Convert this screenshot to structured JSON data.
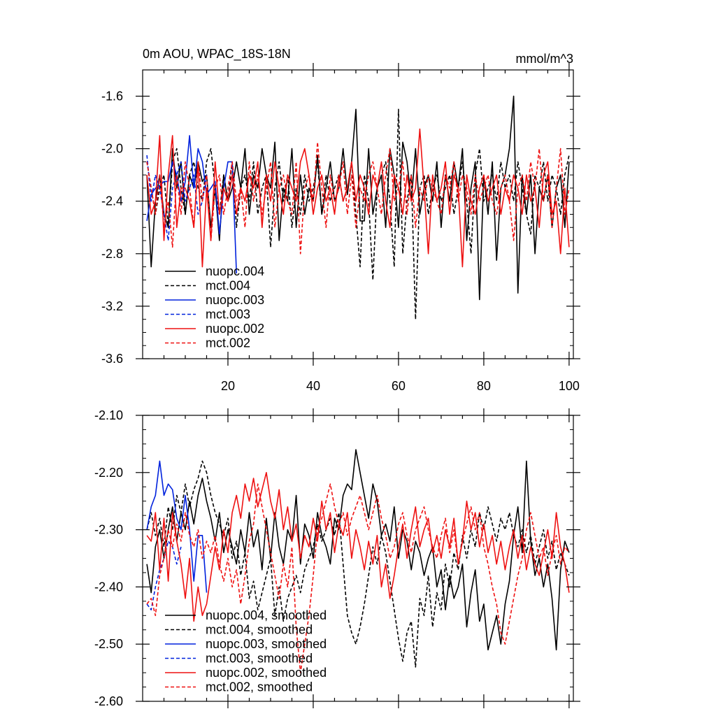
{
  "chart_data": [
    {
      "type": "line",
      "title": "0m AOU, WPAC_18S-18N",
      "units": "mmol/m^3",
      "xlabel": "",
      "ylabel": "",
      "xlim": [
        0,
        101
      ],
      "ylim": [
        -3.6,
        -1.4
      ],
      "yticks": [
        -1.6,
        -2.0,
        -2.4,
        -2.8,
        -3.2,
        -3.6
      ],
      "ytick_labels": [
        "-1.6",
        "-2.0",
        "-2.4",
        "-2.8",
        "-3.2",
        "-3.6"
      ],
      "xticks": [
        20,
        40,
        60,
        80,
        100
      ],
      "xtick_labels": [
        "20",
        "40",
        "60",
        "80",
        "100"
      ],
      "legend_position": "bottom-left",
      "series": [
        {
          "name": "nuopc.004",
          "color": "#000000",
          "dash": "solid",
          "x_start": 1,
          "values": [
            -2.2,
            -2.9,
            -2.4,
            -2.2,
            -2.5,
            -2.6,
            -2.0,
            -2.3,
            -2.1,
            -2.5,
            -2.2,
            -2.3,
            -2.1,
            -2.25,
            -2.2,
            -2.6,
            -2.3,
            -2.7,
            -2.2,
            -2.4,
            -2.3,
            -2.1,
            -2.3,
            -2.0,
            -2.5,
            -2.2,
            -2.3,
            -2.0,
            -2.2,
            -2.3,
            -1.95,
            -2.7,
            -2.3,
            -2.4,
            -2.0,
            -2.6,
            -2.2,
            -2.5,
            -2.3,
            -2.4,
            -2.05,
            -2.5,
            -2.3,
            -2.1,
            -2.4,
            -2.3,
            -2.0,
            -2.35,
            -2.1,
            -1.7,
            -2.55,
            -2.55,
            -2.0,
            -2.5,
            -2.3,
            -2.2,
            -2.6,
            -2.0,
            -2.2,
            -2.6,
            -1.95,
            -2.1,
            -2.4,
            -2.0,
            -2.5,
            -2.3,
            -2.2,
            -2.4,
            -2.1,
            -2.6,
            -2.2,
            -2.4,
            -2.1,
            -2.3,
            -2.0,
            -2.7,
            -2.3,
            -2.1,
            -3.15,
            -2.2,
            -2.5,
            -2.1,
            -2.85,
            -2.3,
            -2.2,
            -2.0,
            -1.6,
            -3.1,
            -2.2,
            -2.5,
            -2.2,
            -2.8,
            -2.3,
            -2.4,
            -2.2,
            -2.6,
            -2.3,
            -2.2,
            -2.6,
            -2.1
          ]
        },
        {
          "name": "mct.004",
          "color": "#000000",
          "dash": "dashed",
          "x_start": 1,
          "values": [
            -2.1,
            -2.3,
            -2.5,
            -2.3,
            -2.2,
            -2.6,
            -2.1,
            -2.0,
            -2.3,
            -2.5,
            -2.2,
            -2.1,
            -2.3,
            -2.4,
            -2.1,
            -2.0,
            -2.3,
            -2.5,
            -2.2,
            -2.4,
            -2.1,
            -2.6,
            -2.3,
            -2.2,
            -2.4,
            -2.1,
            -2.5,
            -2.3,
            -2.2,
            -2.75,
            -2.3,
            -2.1,
            -2.4,
            -2.2,
            -2.6,
            -2.3,
            -2.5,
            -2.2,
            -2.4,
            -2.3,
            -2.1,
            -2.5,
            -2.2,
            -2.4,
            -2.3,
            -2.2,
            -2.4,
            -2.3,
            -2.1,
            -2.5,
            -2.9,
            -2.2,
            -2.4,
            -3.0,
            -2.3,
            -2.2,
            -2.1,
            -2.4,
            -2.9,
            -1.7,
            -2.8,
            -2.4,
            -2.2,
            -3.3,
            -2.3,
            -2.2,
            -2.5,
            -2.3,
            -2.2,
            -2.4,
            -2.3,
            -2.2,
            -2.5,
            -2.3,
            -2.1,
            -2.4,
            -2.8,
            -2.2,
            -2.0,
            -2.4,
            -2.3,
            -2.2,
            -2.4,
            -2.1,
            -2.3,
            -2.2,
            -2.4,
            -2.1,
            -2.3,
            -2.5,
            -2.65,
            -2.2,
            -2.3,
            -2.1,
            -2.4,
            -2.2,
            -2.3,
            -2.5,
            -2.2,
            -2.05
          ]
        },
        {
          "name": "nuopc.003",
          "color": "#0022dd",
          "dash": "solid",
          "x_start": 1,
          "values": [
            -2.55,
            -2.35,
            -2.3,
            -2.28,
            -2.25,
            -2.25,
            -2.1,
            -2.2,
            -2.4,
            -2.25,
            -1.9,
            -2.3,
            -2.0,
            -2.1,
            -2.35,
            -2.3,
            -2.25,
            -2.65,
            -2.3,
            -2.1,
            -2.1,
            -2.95
          ]
        },
        {
          "name": "mct.003",
          "color": "#0022dd",
          "dash": "dashed",
          "x_start": 1,
          "values": [
            -2.05,
            -2.4,
            -2.2,
            -2.3,
            -2.5,
            -2.7,
            -2.3,
            -2.2,
            -2.1,
            -2.4,
            -2.3,
            -2.2,
            -2.5,
            -2.4,
            -2.2
          ]
        },
        {
          "name": "nuopc.002",
          "color": "#ee1111",
          "dash": "solid",
          "x_start": 1,
          "values": [
            -2.2,
            -2.5,
            -2.4,
            -1.9,
            -2.7,
            -2.2,
            -1.9,
            -2.6,
            -2.3,
            -2.3,
            -2.4,
            -2.6,
            -2.1,
            -2.9,
            -2.3,
            -2.7,
            -2.1,
            -2.5,
            -2.3,
            -2.4,
            -2.2,
            -2.5,
            -2.3,
            -2.4,
            -2.2,
            -2.3,
            -2.1,
            -2.6,
            -2.2,
            -2.4,
            -2.1,
            -2.3,
            -2.5,
            -2.2,
            -2.3,
            -2.4,
            -2.1,
            -2.0,
            -2.2,
            -2.5,
            -2.3,
            -2.2,
            -2.4,
            -2.3,
            -2.5,
            -2.2,
            -2.4,
            -2.3,
            -2.1,
            -2.4,
            -2.2,
            -2.3,
            -2.5,
            -2.2,
            -2.3,
            -2.1,
            -2.4,
            -2.6,
            -2.2,
            -2.3,
            -2.5,
            -2.2,
            -2.4,
            -2.3,
            -1.85,
            -2.3,
            -2.8,
            -2.2,
            -2.4,
            -2.3,
            -2.1,
            -2.5,
            -2.2,
            -2.3,
            -2.9,
            -2.2,
            -2.4,
            -2.5,
            -2.3,
            -2.2,
            -2.4,
            -2.3,
            -2.2,
            -2.5,
            -2.3,
            -2.4,
            -2.2,
            -2.3,
            -2.5,
            -2.2,
            -2.4,
            -2.3,
            -2.6,
            -2.2,
            -2.1,
            -2.5,
            -2.4,
            -2.8,
            -2.3,
            -2.75
          ]
        },
        {
          "name": "mct.002",
          "color": "#ee1111",
          "dash": "dashed",
          "x_start": 1,
          "values": [
            -2.1,
            -2.3,
            -2.5,
            -2.2,
            -2.6,
            -2.4,
            -2.75,
            -2.2,
            -2.5,
            -2.1,
            -2.3,
            -2.6,
            -2.1,
            -2.4,
            -2.2,
            -2.7,
            -2.3,
            -2.2,
            -2.5,
            -2.3,
            -2.1,
            -2.4,
            -2.3,
            -2.6,
            -2.1,
            -2.4,
            -2.2,
            -2.5,
            -2.3,
            -2.1,
            -2.6,
            -2.3,
            -2.2,
            -2.4,
            -2.5,
            -2.1,
            -2.8,
            -2.3,
            -2.2,
            -2.4,
            -1.95,
            -2.3,
            -2.6,
            -2.2,
            -2.4,
            -2.3,
            -2.1,
            -2.5,
            -2.2,
            -2.6,
            -2.3,
            -2.4,
            -2.2,
            -2.1,
            -2.3,
            -2.5,
            -2.2,
            -2.0,
            -2.4,
            -2.3,
            -2.1,
            -2.5,
            -2.2,
            -2.6,
            -2.3,
            -2.4,
            -2.2,
            -2.3,
            -2.4,
            -2.5,
            -2.2,
            -2.3,
            -2.1,
            -2.4,
            -2.2,
            -2.3,
            -2.5,
            -2.2,
            -2.4,
            -2.3,
            -2.2,
            -2.4,
            -2.5,
            -2.3,
            -2.2,
            -2.4,
            -2.7,
            -2.3,
            -2.2,
            -2.4,
            -2.1,
            -2.3,
            -2.0,
            -2.4,
            -2.2,
            -2.6,
            -2.3,
            -2.0,
            -2.5,
            -2.3
          ]
        }
      ]
    },
    {
      "type": "line",
      "title": "",
      "xlabel": "",
      "ylabel": "",
      "xlim": [
        0,
        101
      ],
      "ylim": [
        -2.6,
        -2.1
      ],
      "yticks": [
        -2.1,
        -2.2,
        -2.3,
        -2.4,
        -2.5,
        -2.6
      ],
      "ytick_labels": [
        "-2.10",
        "-2.20",
        "-2.30",
        "-2.40",
        "-2.50",
        "-2.60"
      ],
      "xticks": [
        20,
        40,
        60,
        80,
        100
      ],
      "legend_position": "bottom-left",
      "series": [
        {
          "name": "nuopc.004, smoothed",
          "color": "#000000",
          "dash": "solid",
          "x_start": 1,
          "values": [
            -2.36,
            -2.41,
            -2.33,
            -2.3,
            -2.35,
            -2.3,
            -2.26,
            -2.32,
            -2.27,
            -2.3,
            -2.25,
            -2.29,
            -2.24,
            -2.21,
            -2.25,
            -2.28,
            -2.32,
            -2.27,
            -2.34,
            -2.3,
            -2.33,
            -2.36,
            -2.3,
            -2.34,
            -2.27,
            -2.33,
            -2.3,
            -2.37,
            -2.28,
            -2.35,
            -2.27,
            -2.33,
            -2.36,
            -2.3,
            -2.32,
            -2.24,
            -2.36,
            -2.29,
            -2.31,
            -2.35,
            -2.27,
            -2.31,
            -2.33,
            -2.36,
            -2.28,
            -2.3,
            -2.24,
            -2.22,
            -2.23,
            -2.16,
            -2.2,
            -2.24,
            -2.28,
            -2.22,
            -2.25,
            -2.31,
            -2.29,
            -2.32,
            -2.26,
            -2.35,
            -2.3,
            -2.32,
            -2.37,
            -2.32,
            -2.34,
            -2.38,
            -2.35,
            -2.33,
            -2.4,
            -2.37,
            -2.44,
            -2.38,
            -2.42,
            -2.4,
            -2.36,
            -2.47,
            -2.41,
            -2.37,
            -2.46,
            -2.43,
            -2.51,
            -2.48,
            -2.45,
            -2.5,
            -2.43,
            -2.39,
            -2.31,
            -2.26,
            -2.34,
            -2.18,
            -2.32,
            -2.38,
            -2.35,
            -2.4,
            -2.36,
            -2.42,
            -2.51,
            -2.37,
            -2.32,
            -2.34
          ]
        },
        {
          "name": "mct.004, smoothed",
          "color": "#000000",
          "dash": "dashed",
          "x_start": 1,
          "values": [
            -2.3,
            -2.27,
            -2.31,
            -2.28,
            -2.33,
            -2.26,
            -2.3,
            -2.24,
            -2.27,
            -2.22,
            -2.26,
            -2.23,
            -2.21,
            -2.18,
            -2.2,
            -2.24,
            -2.27,
            -2.29,
            -2.31,
            -2.28,
            -2.35,
            -2.32,
            -2.38,
            -2.34,
            -2.42,
            -2.39,
            -2.44,
            -2.41,
            -2.38,
            -2.35,
            -2.45,
            -2.4,
            -2.46,
            -2.42,
            -2.4,
            -2.38,
            -2.41,
            -2.37,
            -2.35,
            -2.33,
            -2.29,
            -2.32,
            -2.3,
            -2.28,
            -2.31,
            -2.27,
            -2.36,
            -2.45,
            -2.48,
            -2.5,
            -2.47,
            -2.43,
            -2.38,
            -2.33,
            -2.36,
            -2.31,
            -2.34,
            -2.39,
            -2.44,
            -2.49,
            -2.53,
            -2.48,
            -2.46,
            -2.54,
            -2.42,
            -2.45,
            -2.38,
            -2.47,
            -2.41,
            -2.44,
            -2.36,
            -2.4,
            -2.34,
            -2.37,
            -2.31,
            -2.35,
            -2.3,
            -2.33,
            -2.27,
            -2.3,
            -2.26,
            -2.29,
            -2.32,
            -2.28,
            -2.3,
            -2.27,
            -2.31,
            -2.33,
            -2.3,
            -2.34,
            -2.31,
            -2.36,
            -2.33,
            -2.3,
            -2.35,
            -2.32,
            -2.37,
            -2.34,
            -2.36,
            -2.38
          ]
        },
        {
          "name": "nuopc.003, smoothed",
          "color": "#0022dd",
          "dash": "solid",
          "x_start": 1,
          "values": [
            -2.3,
            -2.26,
            -2.24,
            -2.18,
            -2.24,
            -2.22,
            -2.23,
            -2.28,
            -2.3,
            -2.24,
            -2.3,
            -2.39,
            -2.31,
            -2.31,
            -2.41
          ]
        },
        {
          "name": "mct.003, smoothed",
          "color": "#0022dd",
          "dash": "dashed",
          "x_start": 1,
          "values": [
            -2.43,
            -2.44,
            -2.4,
            -2.37,
            -2.35,
            -2.32,
            -2.33,
            -2.36,
            -2.33
          ]
        },
        {
          "name": "nuopc.002, smoothed",
          "color": "#ee1111",
          "dash": "solid",
          "x_start": 1,
          "values": [
            -2.31,
            -2.32,
            -2.27,
            -2.37,
            -2.28,
            -2.39,
            -2.27,
            -2.32,
            -2.36,
            -2.42,
            -2.35,
            -2.46,
            -2.4,
            -2.45,
            -2.43,
            -2.38,
            -2.33,
            -2.37,
            -2.3,
            -2.34,
            -2.27,
            -2.24,
            -2.28,
            -2.22,
            -2.25,
            -2.21,
            -2.26,
            -2.23,
            -2.2,
            -2.25,
            -2.28,
            -2.23,
            -2.3,
            -2.26,
            -2.32,
            -2.29,
            -2.35,
            -2.31,
            -2.33,
            -2.28,
            -2.32,
            -2.25,
            -2.3,
            -2.27,
            -2.34,
            -2.29,
            -2.31,
            -2.27,
            -2.35,
            -2.3,
            -2.33,
            -2.37,
            -2.32,
            -2.36,
            -2.31,
            -2.4,
            -2.36,
            -2.42,
            -2.38,
            -2.33,
            -2.29,
            -2.35,
            -2.3,
            -2.26,
            -2.33,
            -2.3,
            -2.28,
            -2.34,
            -2.31,
            -2.35,
            -2.3,
            -2.33,
            -2.28,
            -2.36,
            -2.32,
            -2.25,
            -2.3,
            -2.27,
            -2.33,
            -2.29,
            -2.34,
            -2.31,
            -2.36,
            -2.32,
            -2.37,
            -2.33,
            -2.3,
            -2.35,
            -2.31,
            -2.37,
            -2.33,
            -2.36,
            -2.38,
            -2.34,
            -2.3,
            -2.35,
            -2.27,
            -2.33,
            -2.36,
            -2.41
          ]
        },
        {
          "name": "mct.002, smoothed",
          "color": "#ee1111",
          "dash": "dashed",
          "x_start": 1,
          "values": [
            -2.43,
            -2.42,
            -2.45,
            -2.38,
            -2.35,
            -2.3,
            -2.33,
            -2.29,
            -2.32,
            -2.27,
            -2.31,
            -2.33,
            -2.3,
            -2.35,
            -2.32,
            -2.34,
            -2.31,
            -2.36,
            -2.39,
            -2.35,
            -2.4,
            -2.37,
            -2.43,
            -2.38,
            -2.32,
            -2.29,
            -2.22,
            -2.26,
            -2.3,
            -2.34,
            -2.38,
            -2.42,
            -2.36,
            -2.4,
            -2.33,
            -2.47,
            -2.55,
            -2.5,
            -2.45,
            -2.38,
            -2.3,
            -2.28,
            -2.25,
            -2.22,
            -2.26,
            -2.29,
            -2.27,
            -2.31,
            -2.28,
            -2.26,
            -2.24,
            -2.27,
            -2.3,
            -2.27,
            -2.24,
            -2.28,
            -2.31,
            -2.35,
            -2.33,
            -2.29,
            -2.27,
            -2.31,
            -2.34,
            -2.3,
            -2.28,
            -2.26,
            -2.3,
            -2.33,
            -2.35,
            -2.31,
            -2.28,
            -2.34,
            -2.3,
            -2.36,
            -2.32,
            -2.29,
            -2.26,
            -2.3,
            -2.27,
            -2.33,
            -2.36,
            -2.4,
            -2.43,
            -2.48,
            -2.5,
            -2.46,
            -2.42,
            -2.38,
            -2.35,
            -2.3,
            -2.27,
            -2.31,
            -2.35,
            -2.33,
            -2.38,
            -2.34,
            -2.31,
            -2.36,
            -2.33,
            -2.34
          ]
        }
      ]
    }
  ]
}
